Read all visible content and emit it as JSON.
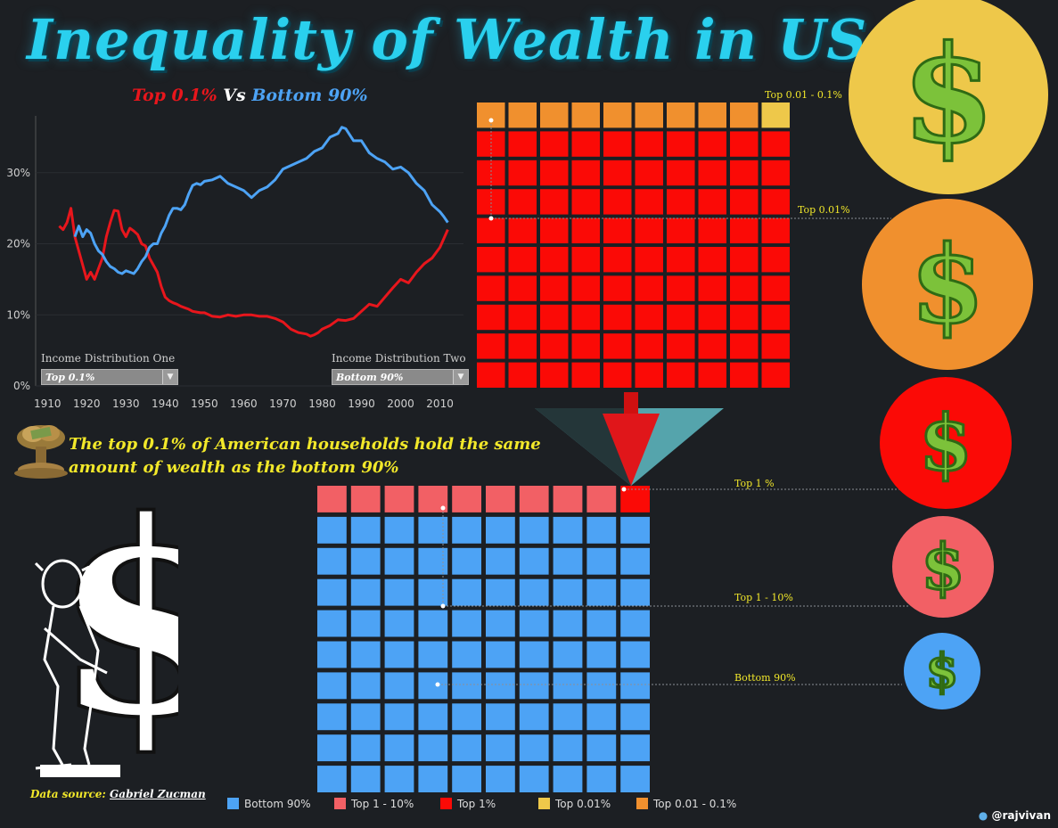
{
  "header": {
    "title": "Inequality of Wealth in US",
    "subtitle_a": "Top 0.1%",
    "subtitle_vs": "Vs",
    "subtitle_b": "Bottom 90%"
  },
  "controls": {
    "dist_one_label": "Income Distribution One",
    "dist_one_value": "Top 0.1%",
    "dist_two_label": "Income Distribution Two",
    "dist_two_value": "Bottom 90%"
  },
  "callout": "The top 0.1% of American households hold the same amount of wealth as the bottom 90%",
  "source": {
    "prefix": "Data source:",
    "name": "Gabriel Zucman"
  },
  "waffle_labels": {
    "top_001_01": "Top 0.01 - 0.1%",
    "top_001": "Top 0.01%",
    "top_1": "Top 1 %",
    "top_1_10": "Top 1 - 10%",
    "bottom_90": "Bottom 90%"
  },
  "legend": [
    {
      "label": "Bottom 90%",
      "color": "#4da3f5"
    },
    {
      "label": "Top 1 - 10%",
      "color": "#f26065"
    },
    {
      "label": "Top 1%",
      "color": "#fb0a06"
    },
    {
      "label": "Top 0.01%",
      "color": "#eec84a"
    },
    {
      "label": "Top 0.01 - 0.1%",
      "color": "#f0902e"
    }
  ],
  "handle": "@rajvivan",
  "colors": {
    "bottom90": "#4da3f5",
    "top1_10": "#f26065",
    "top1": "#fb0a06",
    "top001": "#eec84a",
    "top001_01": "#f0902e",
    "accent_yellow": "#f2e82a"
  },
  "icons": [
    "dollar-coin-icon",
    "mushroom-cloud-money-icon",
    "man-with-dollar-sign-icon",
    "twitter-bird-icon"
  ],
  "chart_data": {
    "type": "line",
    "title": "",
    "xlabel": "",
    "ylabel": "",
    "x_ticks": [
      1910,
      1920,
      1930,
      1940,
      1950,
      1960,
      1970,
      1980,
      1990,
      2000,
      2010
    ],
    "y_ticks": [
      "0%",
      "10%",
      "20%",
      "30%"
    ],
    "xlim": [
      1907,
      2016
    ],
    "ylim": [
      0,
      38
    ],
    "series": [
      {
        "name": "Top 0.1%",
        "color": "#e8161c",
        "x": [
          1913,
          1914,
          1915,
          1916,
          1917,
          1918,
          1919,
          1920,
          1921,
          1922,
          1923,
          1924,
          1925,
          1926,
          1927,
          1928,
          1929,
          1930,
          1931,
          1932,
          1933,
          1934,
          1935,
          1936,
          1937,
          1938,
          1939,
          1940,
          1941,
          1942,
          1943,
          1944,
          1945,
          1946,
          1947,
          1948,
          1949,
          1950,
          1952,
          1954,
          1956,
          1958,
          1960,
          1962,
          1964,
          1966,
          1968,
          1970,
          1972,
          1974,
          1976,
          1977,
          1978,
          1979,
          1980,
          1982,
          1984,
          1986,
          1988,
          1990,
          1992,
          1994,
          1996,
          1998,
          2000,
          2002,
          2004,
          2006,
          2008,
          2010,
          2012
        ],
        "values": [
          22.5,
          22,
          23,
          25,
          21,
          19,
          17,
          15,
          16,
          15,
          16.5,
          18,
          21,
          23,
          24.7,
          24.6,
          22,
          21,
          22.2,
          21.8,
          21.3,
          20,
          19.7,
          18,
          17,
          16,
          14,
          12.5,
          12,
          11.7,
          11.5,
          11.2,
          11,
          10.8,
          10.5,
          10.4,
          10.3,
          10.3,
          9.8,
          9.7,
          10,
          9.8,
          10,
          10,
          9.8,
          9.8,
          9.5,
          9,
          8,
          7.5,
          7.3,
          7,
          7.2,
          7.5,
          8,
          8.5,
          9.3,
          9.2,
          9.5,
          10.5,
          11.5,
          11.2,
          12.5,
          13.8,
          15,
          14.5,
          16,
          17.2,
          18,
          19.5,
          22
        ]
      },
      {
        "name": "Bottom 90%",
        "color": "#4da3f5",
        "x": [
          1917,
          1918,
          1919,
          1920,
          1921,
          1922,
          1923,
          1924,
          1925,
          1926,
          1927,
          1928,
          1929,
          1930,
          1931,
          1932,
          1933,
          1934,
          1935,
          1936,
          1937,
          1938,
          1939,
          1940,
          1941,
          1942,
          1943,
          1944,
          1945,
          1946,
          1947,
          1948,
          1949,
          1950,
          1952,
          1954,
          1956,
          1958,
          1960,
          1962,
          1964,
          1966,
          1968,
          1970,
          1972,
          1974,
          1976,
          1978,
          1980,
          1982,
          1984,
          1985,
          1986,
          1988,
          1990,
          1992,
          1994,
          1996,
          1998,
          2000,
          2002,
          2004,
          2006,
          2008,
          2009,
          2010,
          2011,
          2012
        ],
        "values": [
          21,
          22.5,
          21,
          22,
          21.5,
          20,
          19,
          18.5,
          17.5,
          16.8,
          16.5,
          16,
          15.8,
          16.2,
          16,
          15.8,
          16.5,
          17.5,
          18.2,
          19.5,
          20,
          20,
          21.5,
          22.5,
          24,
          25,
          25,
          24.8,
          25.5,
          27,
          28.2,
          28.5,
          28.3,
          28.8,
          29,
          29.5,
          28.5,
          28,
          27.5,
          26.5,
          27.5,
          28,
          29,
          30.5,
          31,
          31.5,
          32,
          33,
          33.5,
          35,
          35.5,
          36.4,
          36.2,
          34.5,
          34.5,
          32.8,
          32,
          31.5,
          30.5,
          30.8,
          30,
          28.5,
          27.5,
          25.5,
          25,
          24.5,
          23.8,
          23
        ]
      }
    ]
  }
}
